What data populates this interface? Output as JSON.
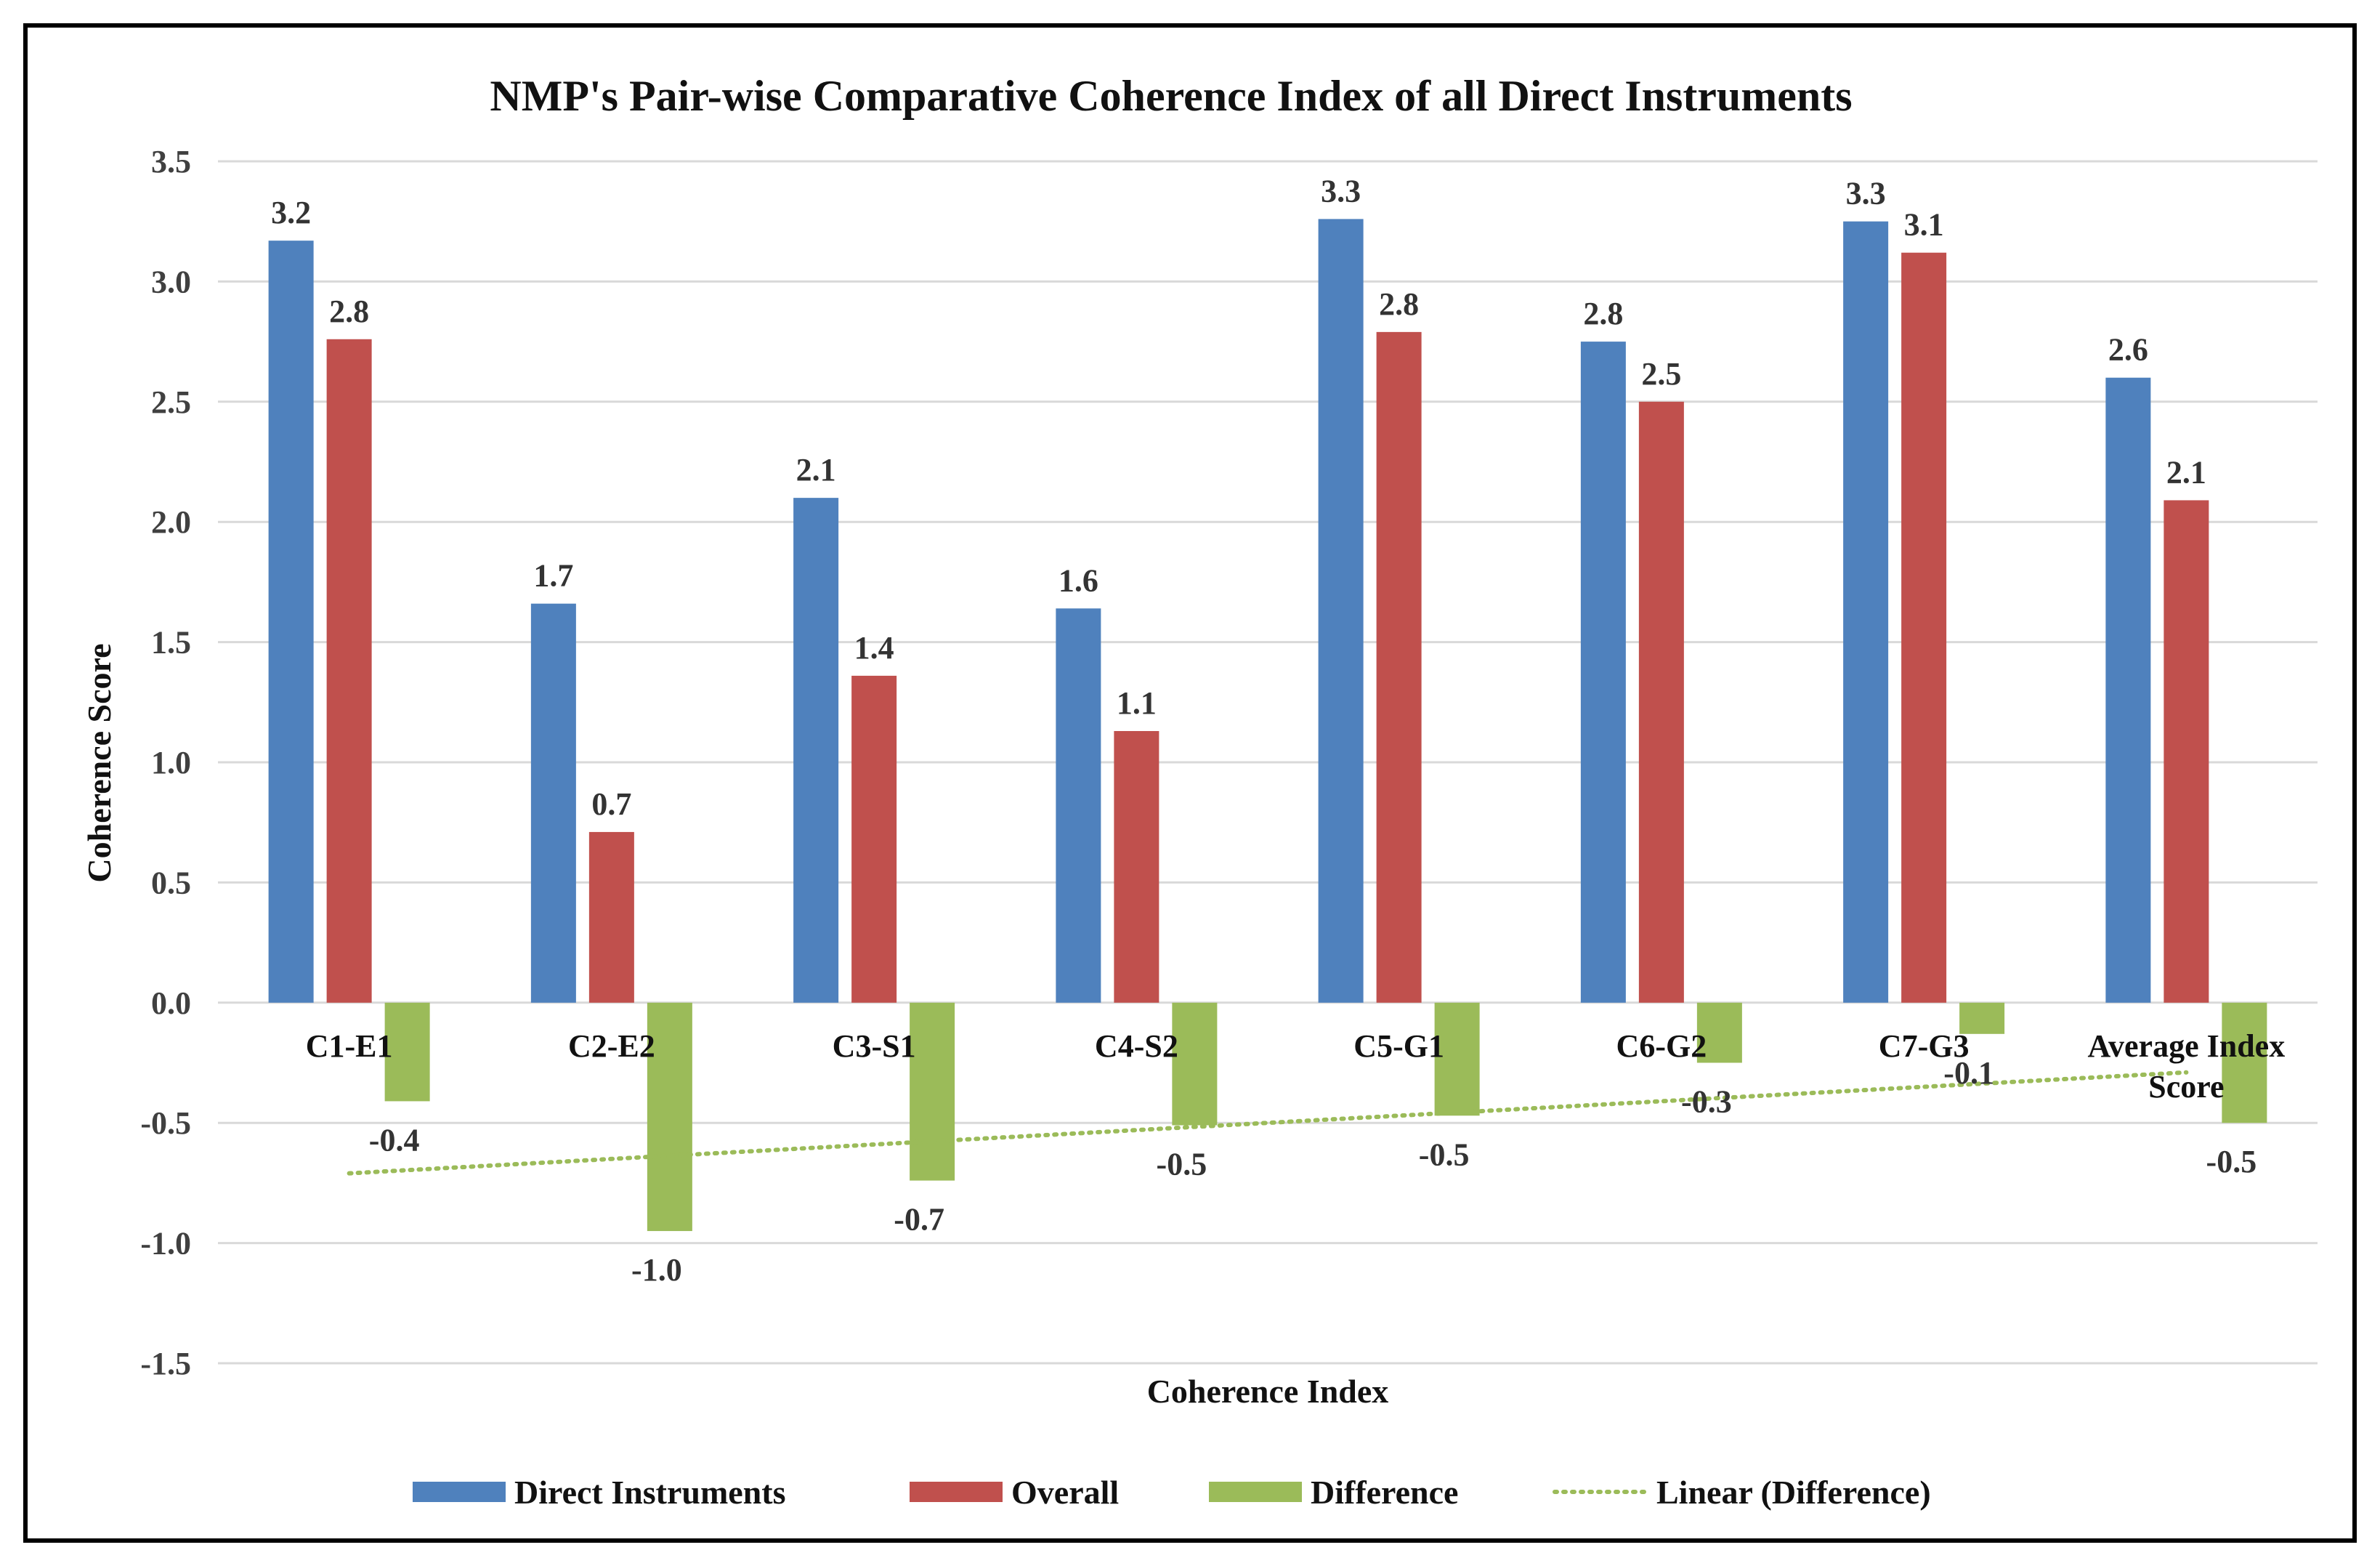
{
  "chart_data": {
    "type": "bar",
    "title": "NMP's Pair-wise Comparative Coherence Index of all Direct Instruments",
    "xlabel": "Coherence Index",
    "ylabel": "Coherence Score",
    "ylim": [
      -1.5,
      3.5
    ],
    "yticks": [
      "3.5",
      "3.0",
      "2.5",
      "2.0",
      "1.5",
      "1.0",
      "0.5",
      "0.0",
      "-0.5",
      "-1.0",
      "-1.5"
    ],
    "grid": true,
    "legend_position": "bottom",
    "categories": [
      {
        "lines": [
          "C1-E1"
        ]
      },
      {
        "lines": [
          "C2-E2"
        ]
      },
      {
        "lines": [
          "C3-S1"
        ]
      },
      {
        "lines": [
          "C4-S2"
        ]
      },
      {
        "lines": [
          "C5-G1"
        ]
      },
      {
        "lines": [
          "C6-G2"
        ]
      },
      {
        "lines": [
          "C7-G3"
        ]
      },
      {
        "lines": [
          "Average Index",
          "Score"
        ]
      }
    ],
    "series": [
      {
        "name": "Direct Instruments",
        "color": "#4f81bd",
        "values": [
          3.17,
          1.66,
          2.1,
          1.64,
          3.26,
          2.75,
          3.25,
          2.6
        ],
        "labels": [
          "3.2",
          "1.7",
          "2.1",
          "1.6",
          "3.3",
          "2.8",
          "3.3",
          "2.6"
        ]
      },
      {
        "name": "Overall",
        "color": "#c0504d",
        "values": [
          2.76,
          0.71,
          1.36,
          1.13,
          2.79,
          2.5,
          3.12,
          2.09
        ],
        "labels": [
          "2.8",
          "0.7",
          "1.4",
          "1.1",
          "2.8",
          "2.5",
          "3.1",
          "2.1"
        ]
      },
      {
        "name": "Difference",
        "color": "#9bbb59",
        "values": [
          -0.41,
          -0.95,
          -0.74,
          -0.51,
          -0.47,
          -0.25,
          -0.13,
          -0.5
        ],
        "labels": [
          "-0.4",
          "-1.0",
          "-0.7",
          "-0.5",
          "-0.5",
          "-0.3",
          "-0.1",
          "-0.5"
        ]
      }
    ],
    "trendline": {
      "name": "Linear (Difference)",
      "color": "#9bbb59",
      "style": "dotted",
      "from": -0.71,
      "to": -0.29
    }
  }
}
